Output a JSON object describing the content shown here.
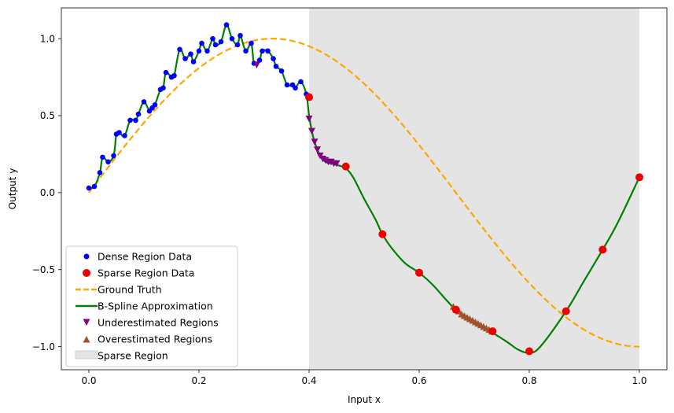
{
  "chart_data": {
    "type": "scatter",
    "title": "",
    "xlabel": "Input x",
    "ylabel": "Output y",
    "xlim": [
      -0.05,
      1.05
    ],
    "ylim": [
      -1.15,
      1.2
    ],
    "xticks": [
      0.0,
      0.2,
      0.4,
      0.6,
      0.8,
      1.0
    ],
    "xtick_labels": [
      "0.0",
      "0.2",
      "0.4",
      "0.6",
      "0.8",
      "1.0"
    ],
    "yticks": [
      -1.0,
      -0.5,
      0.0,
      0.5,
      1.0
    ],
    "ytick_labels": [
      "−1.0",
      "−0.5",
      "0.0",
      "0.5",
      "1.0"
    ],
    "grid": false,
    "legend_position": "lower-left",
    "sparse_region": {
      "x_range": [
        0.4,
        1.0
      ],
      "color": "#e4e4e4"
    },
    "series": [
      {
        "name": "Dense Region Data",
        "kind": "scatter",
        "marker": "circle",
        "color": "#0000ff",
        "x": [
          0.0,
          0.01,
          0.02,
          0.025,
          0.035,
          0.045,
          0.05,
          0.055,
          0.065,
          0.075,
          0.085,
          0.09,
          0.1,
          0.11,
          0.115,
          0.12,
          0.13,
          0.135,
          0.14,
          0.15,
          0.155,
          0.165,
          0.175,
          0.185,
          0.19,
          0.2,
          0.205,
          0.215,
          0.225,
          0.23,
          0.24,
          0.25,
          0.26,
          0.27,
          0.275,
          0.285,
          0.295,
          0.3,
          0.31,
          0.315,
          0.325,
          0.335,
          0.34,
          0.35,
          0.36,
          0.37,
          0.375,
          0.385,
          0.395
        ],
        "y": [
          0.03,
          0.04,
          0.13,
          0.23,
          0.2,
          0.24,
          0.38,
          0.39,
          0.37,
          0.47,
          0.47,
          0.51,
          0.59,
          0.53,
          0.55,
          0.57,
          0.67,
          0.68,
          0.78,
          0.75,
          0.76,
          0.93,
          0.87,
          0.9,
          0.85,
          0.92,
          0.97,
          0.92,
          1.0,
          0.96,
          0.98,
          1.09,
          1.0,
          0.96,
          1.02,
          0.92,
          0.97,
          0.84,
          0.86,
          0.92,
          0.92,
          0.87,
          0.82,
          0.79,
          0.7,
          0.7,
          0.68,
          0.72,
          0.64
        ]
      },
      {
        "name": "Sparse Region Data",
        "kind": "scatter",
        "marker": "circle",
        "color": "#ee0000",
        "x": [
          0.4,
          0.4667,
          0.5333,
          0.6,
          0.6667,
          0.7333,
          0.8,
          0.8667,
          0.9333,
          1.0
        ],
        "y": [
          0.62,
          0.17,
          -0.27,
          -0.52,
          -0.76,
          -0.9,
          -1.03,
          -0.77,
          -0.37,
          0.1
        ]
      },
      {
        "name": "Ground Truth",
        "kind": "line",
        "style": "dashed",
        "color": "#ffa500",
        "function": "sin(1.5*pi*x)"
      },
      {
        "name": "B-Spline Approximation",
        "kind": "line",
        "style": "solid",
        "color": "#008000",
        "x": [
          0.0,
          0.01,
          0.02,
          0.025,
          0.035,
          0.045,
          0.05,
          0.055,
          0.065,
          0.075,
          0.085,
          0.09,
          0.1,
          0.11,
          0.115,
          0.12,
          0.13,
          0.135,
          0.14,
          0.15,
          0.155,
          0.165,
          0.175,
          0.185,
          0.19,
          0.2,
          0.205,
          0.215,
          0.225,
          0.23,
          0.24,
          0.25,
          0.26,
          0.27,
          0.275,
          0.285,
          0.295,
          0.3,
          0.31,
          0.315,
          0.325,
          0.335,
          0.34,
          0.35,
          0.36,
          0.37,
          0.375,
          0.385,
          0.395,
          0.4,
          0.405,
          0.41,
          0.42,
          0.43,
          0.44,
          0.45,
          0.46,
          0.4667,
          0.48,
          0.5,
          0.52,
          0.5333,
          0.55,
          0.575,
          0.6,
          0.625,
          0.65,
          0.6667,
          0.7,
          0.7333,
          0.76,
          0.78,
          0.8,
          0.82,
          0.8667,
          0.9,
          0.9333,
          0.96,
          1.0
        ],
        "y": [
          0.03,
          0.04,
          0.13,
          0.23,
          0.2,
          0.24,
          0.38,
          0.39,
          0.37,
          0.47,
          0.47,
          0.51,
          0.59,
          0.53,
          0.55,
          0.57,
          0.67,
          0.68,
          0.78,
          0.75,
          0.76,
          0.93,
          0.87,
          0.9,
          0.85,
          0.92,
          0.97,
          0.92,
          1.0,
          0.96,
          0.98,
          1.09,
          1.0,
          0.96,
          1.02,
          0.92,
          0.97,
          0.84,
          0.86,
          0.92,
          0.92,
          0.87,
          0.82,
          0.79,
          0.7,
          0.7,
          0.68,
          0.72,
          0.64,
          0.5,
          0.4,
          0.33,
          0.24,
          0.2,
          0.19,
          0.18,
          0.17,
          0.16,
          0.1,
          -0.04,
          -0.17,
          -0.27,
          -0.36,
          -0.46,
          -0.52,
          -0.6,
          -0.7,
          -0.76,
          -0.84,
          -0.91,
          -0.97,
          -1.02,
          -1.04,
          -1.0,
          -0.77,
          -0.57,
          -0.37,
          -0.2,
          0.1
        ]
      },
      {
        "name": "Underestimated Regions",
        "kind": "scatter",
        "marker": "triangle-down",
        "color": "#800080",
        "x": [
          0.305,
          0.4,
          0.405,
          0.41,
          0.415,
          0.42,
          0.425,
          0.43,
          0.435,
          0.44,
          0.445,
          0.45
        ],
        "y": [
          0.83,
          0.48,
          0.4,
          0.33,
          0.28,
          0.24,
          0.22,
          0.21,
          0.2,
          0.2,
          0.19,
          0.19
        ]
      },
      {
        "name": "Overestimated Regions",
        "kind": "scatter",
        "marker": "triangle-up",
        "color": "#a0522d",
        "x": [
          0.662,
          0.667,
          0.672,
          0.677,
          0.682,
          0.687,
          0.692,
          0.697,
          0.702,
          0.707,
          0.712,
          0.717,
          0.722,
          0.727,
          0.732
        ],
        "y": [
          -0.74,
          -0.76,
          -0.77,
          -0.79,
          -0.8,
          -0.81,
          -0.82,
          -0.83,
          -0.84,
          -0.85,
          -0.86,
          -0.87,
          -0.88,
          -0.89,
          -0.9
        ]
      },
      {
        "name": "Sparse Region",
        "kind": "span",
        "color": "#e4e4e4"
      }
    ]
  }
}
